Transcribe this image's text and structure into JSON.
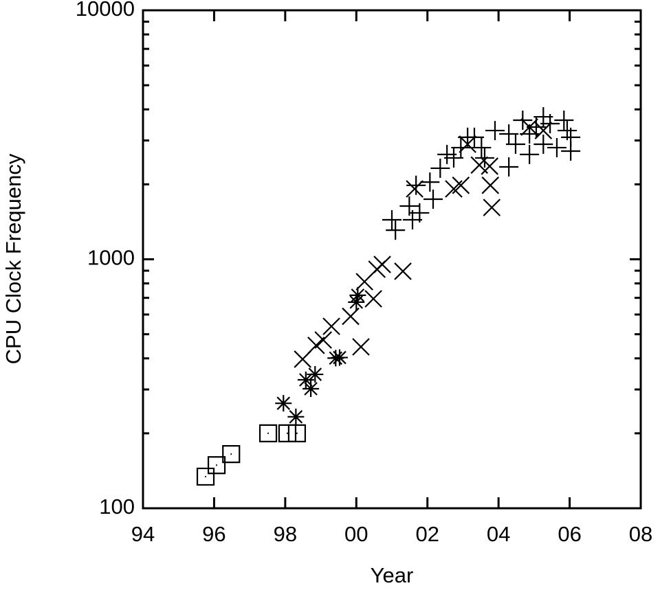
{
  "chart_data": {
    "type": "scatter",
    "x_label": "Year",
    "y_label": "CPU Clock Frequency",
    "xlim": [
      1994,
      2008
    ],
    "xticks": [
      {
        "value": 1994,
        "label": "94"
      },
      {
        "value": 1996,
        "label": "96"
      },
      {
        "value": 1998,
        "label": "98"
      },
      {
        "value": 2000,
        "label": "00"
      },
      {
        "value": 2002,
        "label": "02"
      },
      {
        "value": 2004,
        "label": "04"
      },
      {
        "value": 2006,
        "label": "06"
      },
      {
        "value": 2008,
        "label": "08"
      }
    ],
    "ylim": [
      100,
      10000
    ],
    "yticks": [
      100,
      1000,
      10000
    ],
    "yminorticks": [
      200,
      300,
      400,
      500,
      600,
      700,
      800,
      900,
      2000,
      3000,
      4000,
      5000,
      6000,
      7000,
      8000,
      9000
    ],
    "ylog": true,
    "grid": false,
    "series": [
      {
        "marker": "square",
        "color": "#000000",
        "x": [
          1995.76,
          1996.07,
          1996.48,
          1997.52,
          1998.06,
          1998.33
        ],
        "values": [
          134,
          149,
          165,
          200,
          200,
          200
        ]
      },
      {
        "marker": "asterisk",
        "color": "#000000",
        "x": [
          1997.95,
          1998.3,
          1998.58,
          1998.72,
          1998.84,
          1999.42,
          1999.53,
          2000.0,
          2000.04
        ],
        "values": [
          264,
          233,
          328,
          302,
          345,
          401,
          403,
          673,
          717
        ]
      },
      {
        "marker": "x",
        "color": "#000000",
        "x": [
          1998.49,
          1998.87,
          1999.07,
          1999.3,
          1999.84,
          2000.13,
          2000.23,
          2000.48,
          2000.58,
          2000.73,
          2001.31,
          2001.64,
          2002.74,
          2002.94,
          2003.13,
          2003.46,
          2003.75,
          2003.77,
          2003.81,
          2004.87,
          2005.26
        ],
        "values": [
          397,
          451,
          474,
          538,
          590,
          445,
          813,
          694,
          912,
          953,
          895,
          1918,
          1918,
          1982,
          2898,
          2390,
          2366,
          1982,
          1614,
          3396,
          3289
        ]
      },
      {
        "marker": "plus",
        "color": "#000000",
        "x": [
          2001.0,
          2001.1,
          2001.49,
          2001.58,
          2001.78,
          2001.68,
          2002.07,
          2002.16,
          2002.36,
          2002.55,
          2002.74,
          2002.94,
          2003.13,
          2003.32,
          2003.52,
          2003.61,
          2003.9,
          2004.29,
          2004.29,
          2004.48,
          2004.68,
          2004.87,
          2005.06,
          2005.26,
          2005.45,
          2005.64,
          2005.84,
          2005.93,
          2006.03,
          2006.03,
          2004.87,
          2005.26
        ],
        "values": [
          1441,
          1309,
          1636,
          1441,
          1536,
          1982,
          2042,
          1743,
          2321,
          2636,
          2553,
          2808,
          3090,
          3090,
          2808,
          2553,
          3289,
          2350,
          3187,
          2898,
          3620,
          3187,
          3396,
          3735,
          3506,
          2808,
          3620,
          3289,
          3090,
          2719,
          2636,
          2898
        ]
      }
    ]
  }
}
